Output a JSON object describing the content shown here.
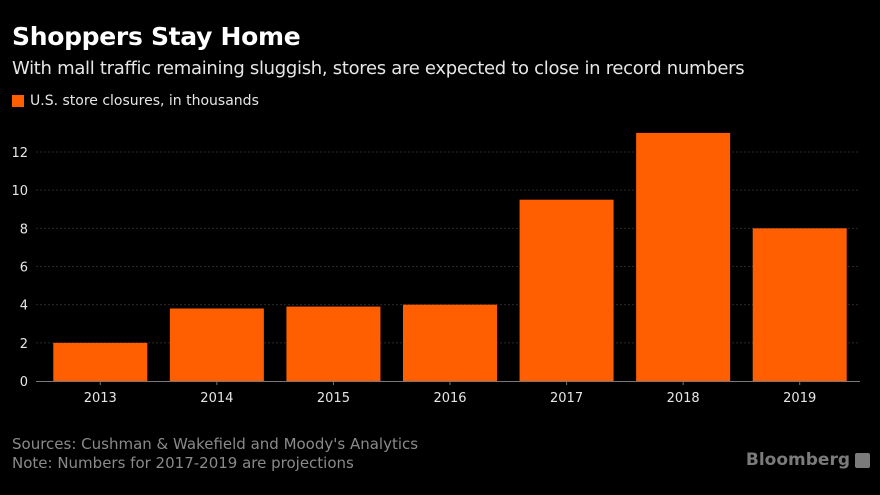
{
  "chart_data": {
    "type": "bar",
    "title": "Shoppers Stay Home",
    "subtitle": "With mall traffic remaining sluggish, stores are expected to close in record numbers",
    "legend": [
      {
        "name": "U.S. store closures, in thousands",
        "color": "#ff5f00"
      }
    ],
    "categories": [
      "2013",
      "2014",
      "2015",
      "2016",
      "2017",
      "2018",
      "2019"
    ],
    "series": [
      {
        "name": "U.S. store closures, in thousands",
        "values": [
          2.0,
          3.8,
          3.9,
          4.0,
          9.5,
          13.0,
          8.0
        ]
      }
    ],
    "ylim": [
      0,
      13.5
    ],
    "yticks": [
      0,
      2,
      4,
      6,
      8,
      10,
      12
    ],
    "xlabel": "",
    "ylabel": "",
    "grid": true,
    "legend_position": "top-left"
  },
  "footer": {
    "sources": "Sources: Cushman & Wakefield and Moody's Analytics",
    "note": "Note: Numbers for 2017-2019 are projections"
  },
  "logo": "Bloomberg"
}
